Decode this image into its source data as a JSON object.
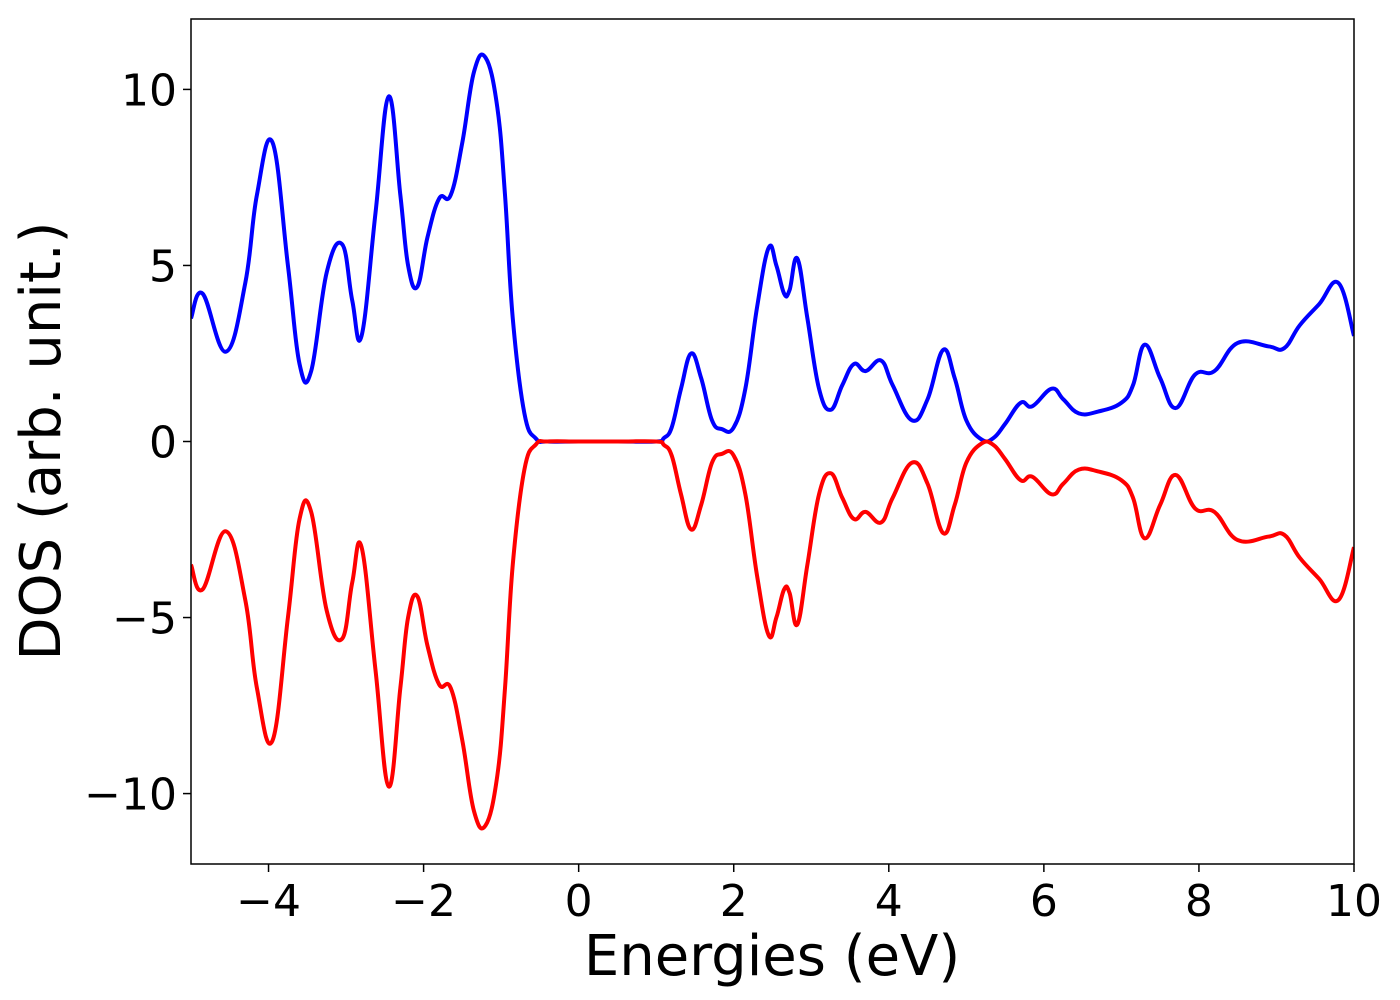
{
  "chart_data": {
    "type": "line",
    "xlabel": "Energies (eV)",
    "ylabel": "DOS (arb. unit.)",
    "xlim": [
      -5,
      10
    ],
    "ylim": [
      -12,
      12
    ],
    "xticks": [
      -4,
      -2,
      0,
      2,
      4,
      6,
      8,
      10
    ],
    "xtick_labels": [
      "−4",
      "−2",
      "0",
      "2",
      "4",
      "6",
      "8",
      "10"
    ],
    "yticks": [
      -10,
      -5,
      0,
      5,
      10
    ],
    "ytick_labels": [
      "−10",
      "−5",
      "0",
      "5",
      "10"
    ],
    "grid": false,
    "legend": "none",
    "series": [
      {
        "color": "#0000ff",
        "x": [
          -5.0,
          -4.85,
          -4.55,
          -4.3,
          -4.15,
          -3.95,
          -3.75,
          -3.6,
          -3.45,
          -3.25,
          -3.05,
          -2.92,
          -2.8,
          -2.62,
          -2.45,
          -2.3,
          -2.2,
          -2.08,
          -1.95,
          -1.8,
          -1.65,
          -1.5,
          -1.35,
          -1.2,
          -1.05,
          -0.95,
          -0.85,
          -0.7,
          -0.55,
          -0.4,
          0.0,
          0.5,
          1.0,
          1.1,
          1.2,
          1.32,
          1.45,
          1.58,
          1.72,
          1.85,
          2.0,
          2.15,
          2.3,
          2.45,
          2.55,
          2.65,
          2.72,
          2.82,
          2.95,
          3.1,
          3.25,
          3.4,
          3.55,
          3.7,
          3.9,
          4.05,
          4.3,
          4.5,
          4.7,
          4.85,
          5.0,
          5.2,
          5.35,
          5.5,
          5.7,
          5.85,
          6.1,
          6.25,
          6.45,
          6.7,
          7.0,
          7.15,
          7.3,
          7.5,
          7.7,
          7.95,
          8.2,
          8.5,
          8.9,
          9.1,
          9.3,
          9.55,
          9.8,
          10.0
        ],
        "y": [
          3.5,
          4.2,
          2.55,
          4.5,
          7.0,
          8.5,
          5.0,
          2.2,
          2.0,
          4.8,
          5.6,
          4.0,
          3.0,
          6.5,
          9.8,
          7.0,
          5.0,
          4.4,
          5.8,
          6.9,
          7.0,
          8.5,
          10.5,
          10.9,
          9.5,
          7.0,
          3.5,
          0.8,
          0.08,
          0.0,
          0.0,
          0.0,
          0.0,
          0.1,
          0.4,
          1.5,
          2.5,
          1.8,
          0.6,
          0.35,
          0.4,
          1.5,
          3.8,
          5.5,
          5.0,
          4.2,
          4.3,
          5.2,
          3.5,
          1.5,
          0.9,
          1.6,
          2.2,
          2.0,
          2.3,
          1.6,
          0.6,
          1.2,
          2.6,
          1.8,
          0.6,
          0.05,
          0.1,
          0.5,
          1.1,
          1.0,
          1.5,
          1.2,
          0.8,
          0.85,
          1.1,
          1.6,
          2.75,
          1.8,
          0.95,
          1.9,
          2.0,
          2.8,
          2.7,
          2.65,
          3.3,
          3.9,
          4.5,
          3.0
        ]
      },
      {
        "color": "#ff0000",
        "x": [
          -5.0,
          -4.85,
          -4.55,
          -4.3,
          -4.15,
          -3.95,
          -3.75,
          -3.6,
          -3.45,
          -3.25,
          -3.05,
          -2.92,
          -2.8,
          -2.62,
          -2.45,
          -2.3,
          -2.2,
          -2.08,
          -1.95,
          -1.8,
          -1.65,
          -1.5,
          -1.35,
          -1.2,
          -1.05,
          -0.95,
          -0.85,
          -0.7,
          -0.55,
          -0.4,
          0.0,
          0.5,
          1.0,
          1.1,
          1.2,
          1.32,
          1.45,
          1.58,
          1.72,
          1.85,
          2.0,
          2.15,
          2.3,
          2.45,
          2.55,
          2.65,
          2.72,
          2.82,
          2.95,
          3.1,
          3.25,
          3.4,
          3.55,
          3.7,
          3.9,
          4.05,
          4.3,
          4.5,
          4.7,
          4.85,
          5.0,
          5.2,
          5.35,
          5.5,
          5.7,
          5.85,
          6.1,
          6.25,
          6.45,
          6.7,
          7.0,
          7.15,
          7.3,
          7.5,
          7.7,
          7.95,
          8.2,
          8.5,
          8.9,
          9.1,
          9.3,
          9.55,
          9.8,
          10.0
        ],
        "y": [
          -3.5,
          -4.2,
          -2.55,
          -4.5,
          -7.0,
          -8.5,
          -5.0,
          -2.2,
          -2.0,
          -4.8,
          -5.6,
          -4.0,
          -3.0,
          -6.5,
          -9.8,
          -7.0,
          -5.0,
          -4.4,
          -5.8,
          -6.9,
          -7.0,
          -8.5,
          -10.5,
          -10.9,
          -9.5,
          -7.0,
          -3.5,
          -0.8,
          -0.08,
          0.0,
          0.0,
          0.0,
          0.0,
          -0.1,
          -0.4,
          -1.5,
          -2.5,
          -1.8,
          -0.6,
          -0.35,
          -0.4,
          -1.5,
          -3.8,
          -5.5,
          -5.0,
          -4.2,
          -4.3,
          -5.2,
          -3.5,
          -1.5,
          -0.9,
          -1.6,
          -2.2,
          -2.0,
          -2.3,
          -1.6,
          -0.6,
          -1.2,
          -2.6,
          -1.8,
          -0.6,
          -0.05,
          -0.1,
          -0.5,
          -1.1,
          -1.0,
          -1.5,
          -1.2,
          -0.8,
          -0.85,
          -1.1,
          -1.6,
          -2.75,
          -1.8,
          -0.95,
          -1.9,
          -2.0,
          -2.8,
          -2.7,
          -2.65,
          -3.3,
          -3.9,
          -4.5,
          -3.0
        ]
      }
    ]
  }
}
